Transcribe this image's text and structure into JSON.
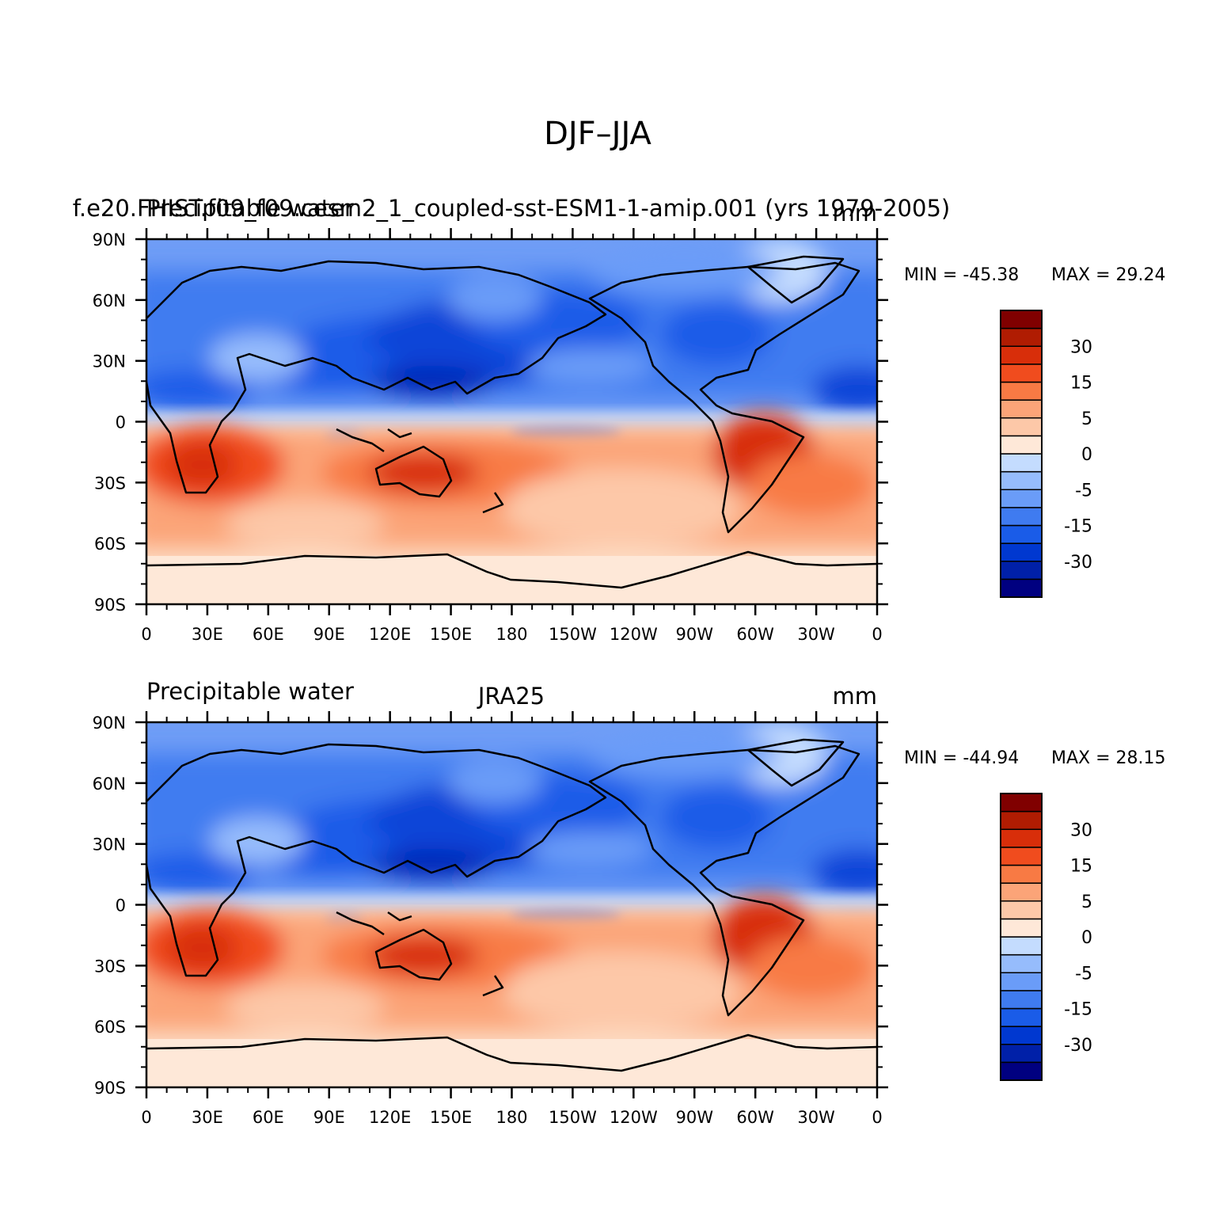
{
  "figure_title": "DJF–JJA",
  "panels": [
    {
      "left_label": "Precipitable water",
      "center_label": "f.e20.FHIST.f09_f09.cesm2_1_coupled-sst-ESM1-1-amip.001 (yrs 1979-2005)",
      "units": "mm",
      "min_label": "MIN = -45.38",
      "max_label": "MAX =  29.24"
    },
    {
      "left_label": "Precipitable water",
      "center_label": "JRA25",
      "units": "mm",
      "min_label": "MIN = -44.94",
      "max_label": "MAX =  28.15"
    }
  ],
  "lat_ticks": [
    "90N",
    "60N",
    "30N",
    "0",
    "30S",
    "60S",
    "90S"
  ],
  "lon_ticks": [
    "0",
    "30E",
    "60E",
    "90E",
    "120E",
    "150E",
    "180",
    "150W",
    "120W",
    "90W",
    "60W",
    "30W",
    "0"
  ],
  "colorbar": {
    "colors": [
      "#000080",
      "#0020a8",
      "#0038d0",
      "#1a5ce8",
      "#3f7bf0",
      "#6a9cf8",
      "#96bcfc",
      "#c4dcfe",
      "#fee8d8",
      "#fdc8a8",
      "#fba478",
      "#f87a44",
      "#f04c1e",
      "#d82e0a",
      "#b01c02",
      "#800000"
    ],
    "labels": [
      "30",
      "15",
      "5",
      "0",
      "-5",
      "-15",
      "-30"
    ]
  },
  "chart_data": [
    {
      "type": "filled-contour-map",
      "title": "DJF–JJA",
      "variable": "Precipitable water",
      "units": "mm",
      "dataset": "f.e20.FHIST.f09_f09.cesm2_1_coupled-sst-ESM1-1-amip.001 (yrs 1979-2005)",
      "min": -45.38,
      "max": 29.24,
      "lon_range": [
        0,
        360
      ],
      "lat_range": [
        -90,
        90
      ],
      "contour_labels": [
        30,
        15,
        5,
        0,
        -5,
        -15,
        -30
      ]
    },
    {
      "type": "filled-contour-map",
      "title": "DJF–JJA",
      "variable": "Precipitable water",
      "units": "mm",
      "dataset": "JRA25",
      "min": -44.94,
      "max": 28.15,
      "lon_range": [
        0,
        360
      ],
      "lat_range": [
        -90,
        90
      ],
      "contour_labels": [
        30,
        15,
        5,
        0,
        -5,
        -15,
        -30
      ]
    }
  ]
}
